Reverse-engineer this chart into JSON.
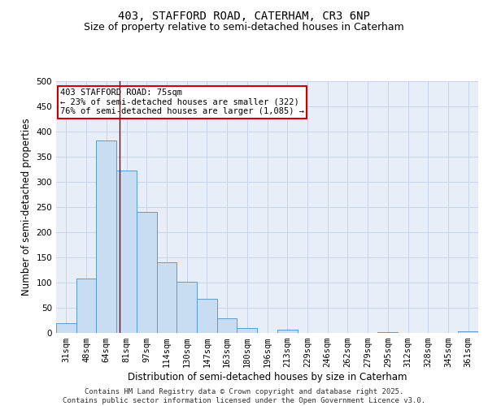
{
  "title1": "403, STAFFORD ROAD, CATERHAM, CR3 6NP",
  "title2": "Size of property relative to semi-detached houses in Caterham",
  "xlabel": "Distribution of semi-detached houses by size in Caterham",
  "ylabel": "Number of semi-detached properties",
  "categories": [
    "31sqm",
    "48sqm",
    "64sqm",
    "81sqm",
    "97sqm",
    "114sqm",
    "130sqm",
    "147sqm",
    "163sqm",
    "180sqm",
    "196sqm",
    "213sqm",
    "229sqm",
    "246sqm",
    "262sqm",
    "279sqm",
    "295sqm",
    "312sqm",
    "328sqm",
    "345sqm",
    "361sqm"
  ],
  "values": [
    19,
    108,
    383,
    323,
    241,
    141,
    101,
    68,
    29,
    10,
    0,
    7,
    0,
    0,
    0,
    0,
    2,
    0,
    0,
    0,
    3
  ],
  "bar_color": "#c9ddf2",
  "bar_edge_color": "#5b9bd5",
  "subject_line_color": "#8b0000",
  "annotation_text": "403 STAFFORD ROAD: 75sqm\n← 23% of semi-detached houses are smaller (322)\n76% of semi-detached houses are larger (1,085) →",
  "annotation_box_color": "#ffffff",
  "annotation_box_edge_color": "#cc0000",
  "ylim": [
    0,
    500
  ],
  "yticks": [
    0,
    50,
    100,
    150,
    200,
    250,
    300,
    350,
    400,
    450,
    500
  ],
  "grid_color": "#c8d4e8",
  "background_color": "#e8eef8",
  "footer_text": "Contains HM Land Registry data © Crown copyright and database right 2025.\nContains public sector information licensed under the Open Government Licence v3.0.",
  "title_fontsize": 10,
  "subtitle_fontsize": 9,
  "axis_label_fontsize": 8.5,
  "tick_fontsize": 7.5,
  "annotation_fontsize": 7.5,
  "footer_fontsize": 6.5
}
